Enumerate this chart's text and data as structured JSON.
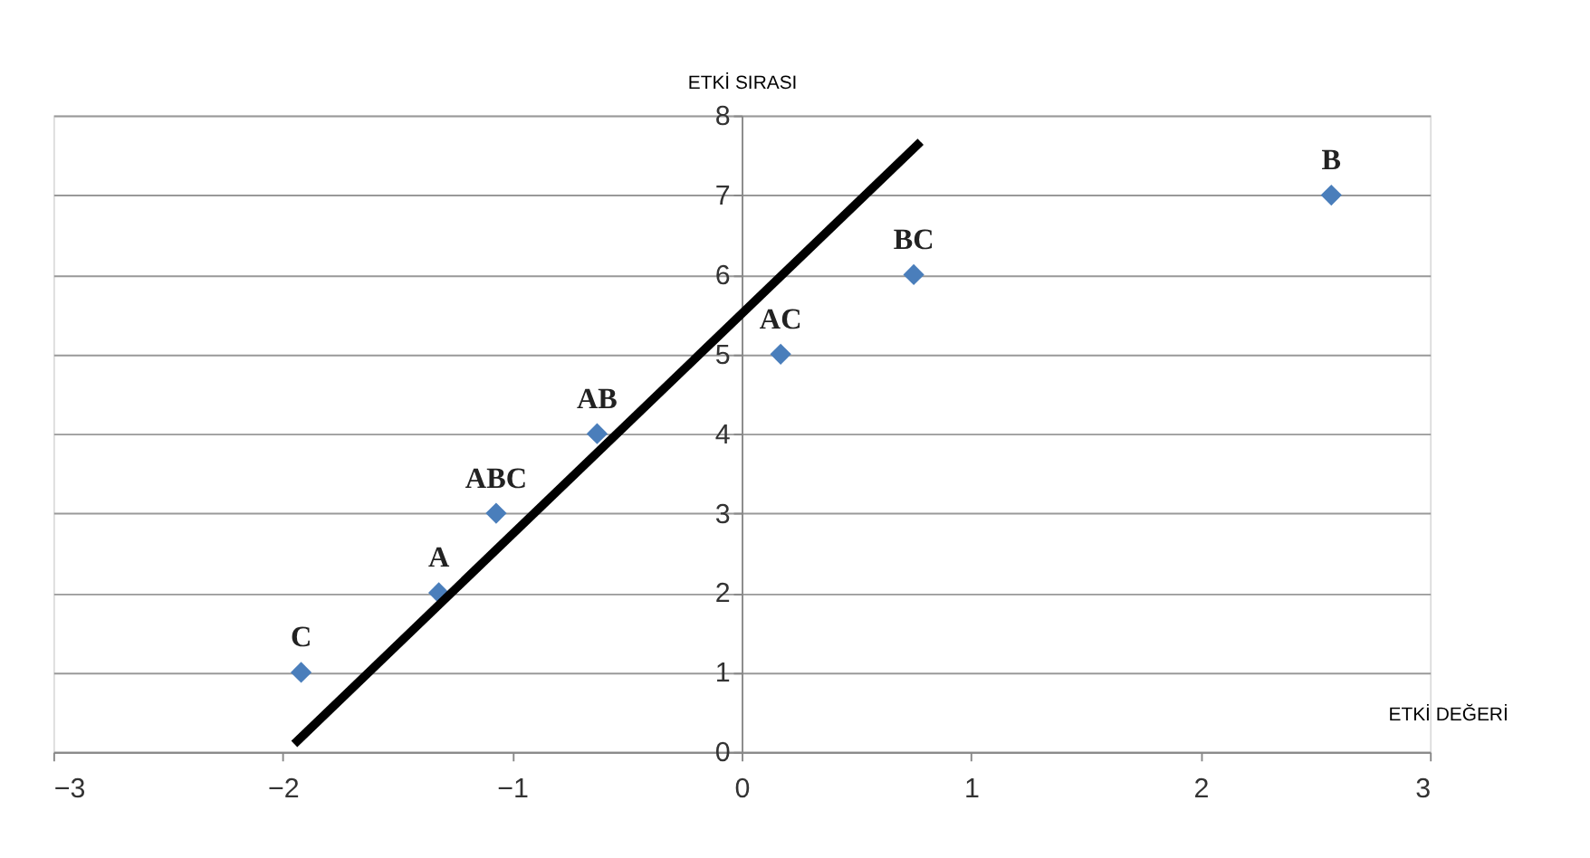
{
  "chart_data": {
    "type": "scatter",
    "xlabel": "ETKİ DEĞERİ",
    "ylabel": "ETKİ SIRASI",
    "xlim": [
      -3,
      3
    ],
    "xticks": [
      -3,
      -2,
      -1,
      0,
      1,
      2,
      3
    ],
    "ylim": [
      0,
      8
    ],
    "yticks": [
      0,
      1,
      2,
      3,
      4,
      5,
      6,
      7,
      8
    ],
    "grid": "y",
    "series": [
      {
        "color": "#4a7ebb",
        "marker": "diamond",
        "x": [
          -1.92,
          -1.32,
          -1.07,
          -0.63,
          0.17,
          0.75,
          2.57
        ],
        "values": [
          1,
          2,
          3,
          4,
          5,
          6,
          7
        ]
      },
      {
        "type": "line",
        "color": "#000000",
        "line_style": "solid",
        "x": [
          -1.95,
          0.78
        ],
        "values": [
          0.1,
          7.67
        ]
      }
    ],
    "annotations": [
      {
        "text": "C",
        "x": -1.92,
        "y": 1
      },
      {
        "text": "A",
        "x": -1.32,
        "y": 2
      },
      {
        "text": "ABC",
        "x": -1.07,
        "y": 3
      },
      {
        "text": "AB",
        "x": -0.63,
        "y": 4
      },
      {
        "text": "AC",
        "x": 0.17,
        "y": 5
      },
      {
        "text": "BC",
        "x": 0.75,
        "y": 6
      },
      {
        "text": "B",
        "x": 2.57,
        "y": 7
      }
    ]
  }
}
